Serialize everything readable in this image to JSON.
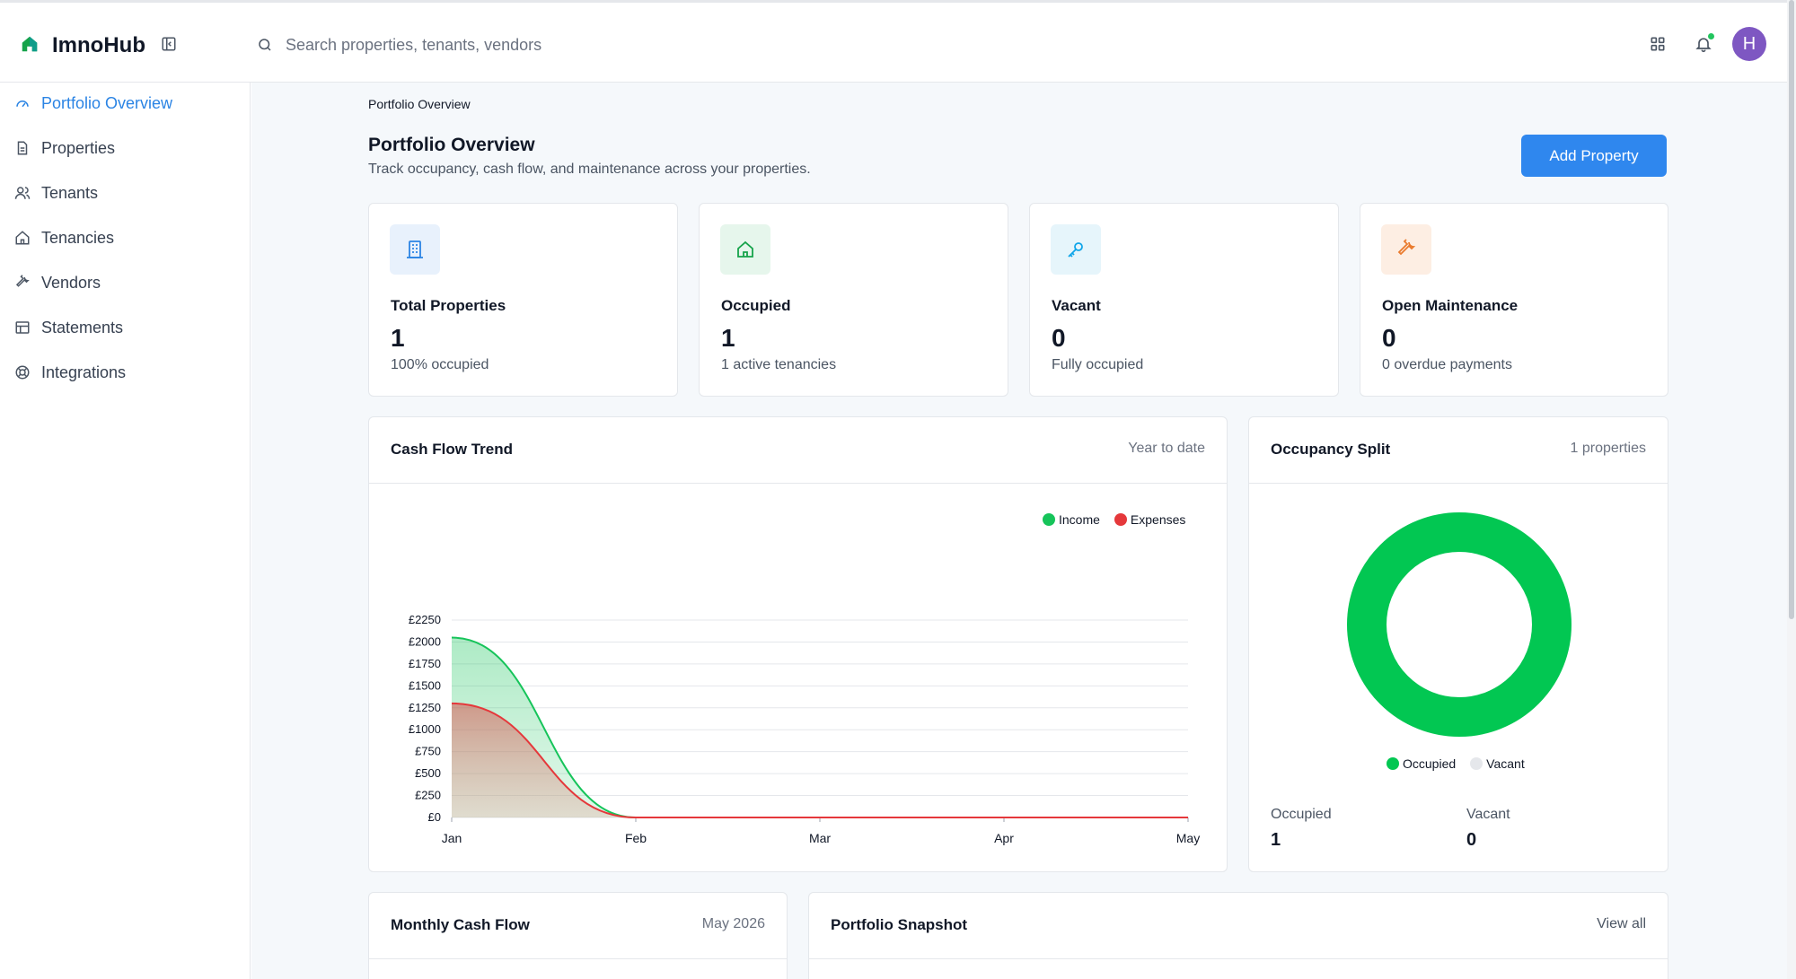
{
  "app": {
    "name": "ImnoHub"
  },
  "search": {
    "placeholder": "Search properties, tenants, vendors"
  },
  "header": {
    "avatar_initial": "H"
  },
  "sidebar": {
    "items": [
      {
        "label": "Portfolio Overview",
        "icon": "gauge-icon",
        "active": true
      },
      {
        "label": "Properties",
        "icon": "document-icon"
      },
      {
        "label": "Tenants",
        "icon": "users-icon"
      },
      {
        "label": "Tenancies",
        "icon": "home-icon"
      },
      {
        "label": "Vendors",
        "icon": "wrench-icon"
      },
      {
        "label": "Statements",
        "icon": "table-icon"
      },
      {
        "label": "Integrations",
        "icon": "lifebuoy-icon"
      }
    ]
  },
  "page": {
    "breadcrumb": "Portfolio Overview",
    "title": "Portfolio Overview",
    "subtitle": "Track occupancy, cash flow, and maintenance across your properties.",
    "add_button": "Add Property"
  },
  "stats": [
    {
      "label": "Total Properties",
      "value": "1",
      "sub": "100% occupied",
      "icon": "building-icon",
      "color": "#2b84e4",
      "bg": "#e8f1fc"
    },
    {
      "label": "Occupied",
      "value": "1",
      "sub": "1 active tenancies",
      "icon": "home-icon",
      "color": "#16a34a",
      "bg": "#e6f6ec"
    },
    {
      "label": "Vacant",
      "value": "0",
      "sub": "Fully occupied",
      "icon": "key-icon",
      "color": "#0ea5e9",
      "bg": "#e6f5fb"
    },
    {
      "label": "Open Maintenance",
      "value": "0",
      "sub": "0 overdue payments",
      "icon": "wrench-icon",
      "color": "#ea7a2c",
      "bg": "#fdeee3"
    }
  ],
  "cashflow": {
    "title": "Cash Flow Trend",
    "meta": "Year to date"
  },
  "occupancy": {
    "title": "Occupancy Split",
    "meta": "1 properties",
    "occupied_label": "Occupied",
    "occupied_value": "1",
    "vacant_label": "Vacant",
    "vacant_value": "0"
  },
  "monthly": {
    "title": "Monthly Cash Flow",
    "meta": "May 2026"
  },
  "snapshot": {
    "title": "Portfolio Snapshot",
    "link": "View all"
  },
  "chart_data": [
    {
      "type": "area",
      "title": "Cash Flow Trend",
      "categories": [
        "Jan",
        "Feb",
        "Mar",
        "Apr",
        "May"
      ],
      "ylim": [
        0,
        2250
      ],
      "yticks": [
        "£0",
        "£250",
        "£500",
        "£750",
        "£1000",
        "£1250",
        "£1500",
        "£1750",
        "£2000",
        "£2250"
      ],
      "ytick_values": [
        0,
        250,
        500,
        750,
        1000,
        1250,
        1500,
        1750,
        2000,
        2250
      ],
      "grid": true,
      "legend_position": "top-right",
      "series": [
        {
          "name": "Income",
          "values": [
            2050,
            0,
            0,
            0,
            0
          ],
          "color": "#16c45a"
        },
        {
          "name": "Expenses",
          "values": [
            1300,
            0,
            0,
            0,
            0
          ],
          "color": "#e5383b"
        }
      ]
    },
    {
      "type": "pie",
      "title": "Occupancy Split",
      "categories": [
        "Occupied",
        "Vacant"
      ],
      "values": [
        1,
        0
      ],
      "colors": [
        "#02c752",
        "#e5e7eb"
      ],
      "legend_position": "bottom"
    }
  ]
}
